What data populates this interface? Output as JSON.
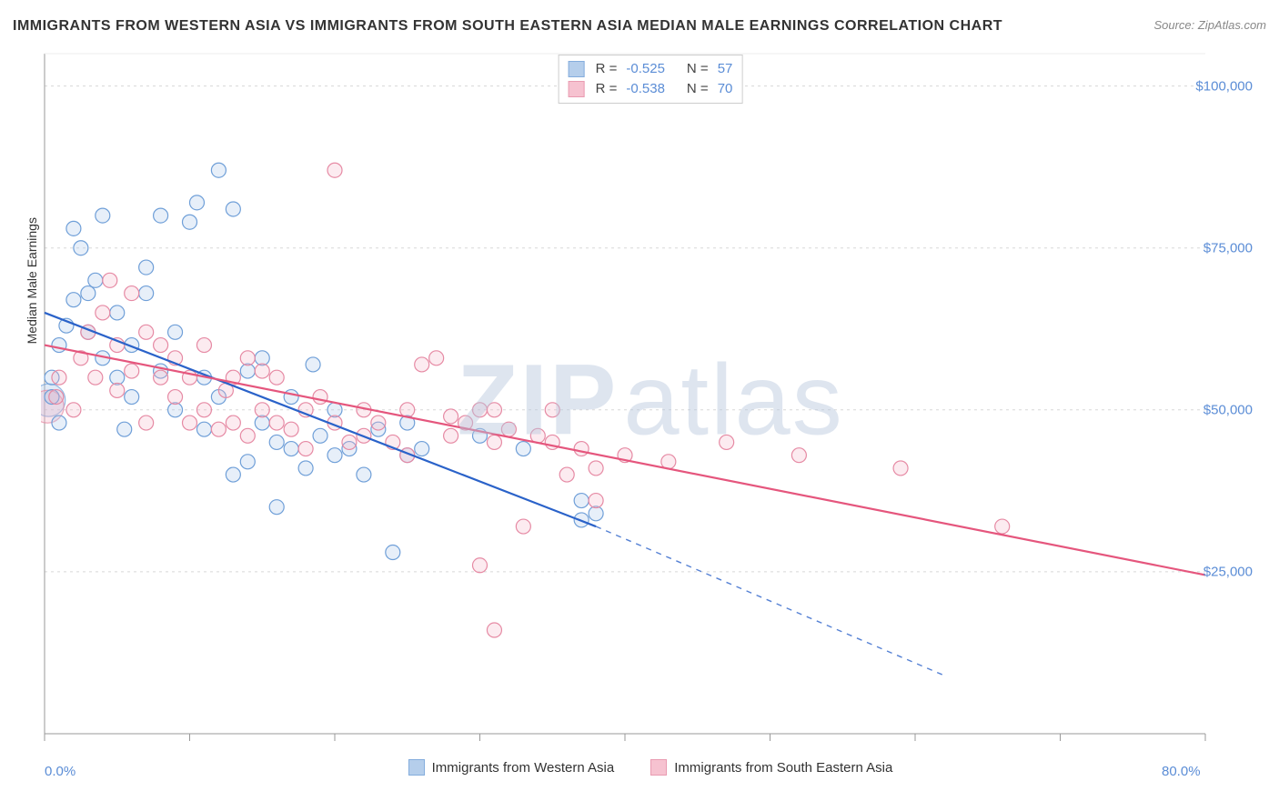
{
  "header": {
    "title": "IMMIGRANTS FROM WESTERN ASIA VS IMMIGRANTS FROM SOUTH EASTERN ASIA MEDIAN MALE EARNINGS CORRELATION CHART",
    "source": "Source: ZipAtlas.com"
  },
  "watermark": {
    "part1": "ZIP",
    "part2": "atlas"
  },
  "chart": {
    "type": "scatter-with-regression",
    "xlim": [
      0,
      80
    ],
    "ylim": [
      0,
      105000
    ],
    "x_tick_min_label": "0.0%",
    "x_tick_max_label": "80.0%",
    "x_ticks": [
      0,
      10,
      20,
      30,
      40,
      50,
      60,
      70,
      80
    ],
    "y_ticks": [
      25000,
      50000,
      75000,
      100000
    ],
    "y_tick_labels": [
      "$25,000",
      "$50,000",
      "$75,000",
      "$100,000"
    ],
    "y_axis_label": "Median Male Earnings",
    "grid_color": "#d8d8d8",
    "axis_color": "#999999",
    "tick_label_color": "#5b8dd6",
    "background_color": "#ffffff",
    "marker_radius": 8,
    "marker_stroke_width": 1.2,
    "marker_fill_opacity": 0.28,
    "line_width": 2.2,
    "big_marker_radius": 18,
    "series": [
      {
        "name": "Immigrants from Western Asia",
        "color_stroke": "#6f9fd8",
        "color_fill": "#a9c6e8",
        "line_color": "#2a62c9",
        "r_label": "R =",
        "r_value": "-0.525",
        "n_label": "N =",
        "n_value": "57",
        "regression": {
          "x1": 0,
          "y1": 65000,
          "x2": 38,
          "y2": 32000,
          "dash_extend_x": 62,
          "dash_extend_y": 9000
        },
        "points": [
          [
            0.5,
            52000
          ],
          [
            0.5,
            55000
          ],
          [
            1,
            48000
          ],
          [
            1,
            60000
          ],
          [
            1.5,
            63000
          ],
          [
            2,
            67000
          ],
          [
            2,
            78000
          ],
          [
            2.5,
            75000
          ],
          [
            3,
            68000
          ],
          [
            3,
            62000
          ],
          [
            3.5,
            70000
          ],
          [
            4,
            80000
          ],
          [
            4,
            58000
          ],
          [
            5,
            65000
          ],
          [
            5,
            55000
          ],
          [
            5.5,
            47000
          ],
          [
            6,
            52000
          ],
          [
            6,
            60000
          ],
          [
            7,
            72000
          ],
          [
            7,
            68000
          ],
          [
            8,
            80000
          ],
          [
            8,
            56000
          ],
          [
            9,
            62000
          ],
          [
            9,
            50000
          ],
          [
            10,
            79000
          ],
          [
            10.5,
            82000
          ],
          [
            11,
            55000
          ],
          [
            11,
            47000
          ],
          [
            12,
            87000
          ],
          [
            12,
            52000
          ],
          [
            13,
            81000
          ],
          [
            13,
            40000
          ],
          [
            14,
            56000
          ],
          [
            14,
            42000
          ],
          [
            15,
            58000
          ],
          [
            15,
            48000
          ],
          [
            16,
            35000
          ],
          [
            16,
            45000
          ],
          [
            17,
            52000
          ],
          [
            17,
            44000
          ],
          [
            18,
            41000
          ],
          [
            18.5,
            57000
          ],
          [
            19,
            46000
          ],
          [
            20,
            43000
          ],
          [
            20,
            50000
          ],
          [
            21,
            44000
          ],
          [
            22,
            40000
          ],
          [
            23,
            47000
          ],
          [
            24,
            28000
          ],
          [
            25,
            43000
          ],
          [
            25,
            48000
          ],
          [
            26,
            44000
          ],
          [
            30,
            46000
          ],
          [
            33,
            44000
          ],
          [
            37,
            33000
          ],
          [
            37,
            36000
          ],
          [
            38,
            34000
          ]
        ],
        "big_points": [
          [
            0.3,
            51500
          ]
        ]
      },
      {
        "name": "Immigrants from South Eastern Asia",
        "color_stroke": "#e68aa4",
        "color_fill": "#f5b8c8",
        "line_color": "#e5567d",
        "r_label": "R =",
        "r_value": "-0.538",
        "n_label": "N =",
        "n_value": "70",
        "regression": {
          "x1": 0,
          "y1": 60000,
          "x2": 80,
          "y2": 24500
        },
        "points": [
          [
            0.8,
            52000
          ],
          [
            1,
            55000
          ],
          [
            2,
            50000
          ],
          [
            2.5,
            58000
          ],
          [
            3,
            62000
          ],
          [
            3.5,
            55000
          ],
          [
            4,
            65000
          ],
          [
            4.5,
            70000
          ],
          [
            5,
            60000
          ],
          [
            5,
            53000
          ],
          [
            6,
            68000
          ],
          [
            6,
            56000
          ],
          [
            7,
            62000
          ],
          [
            7,
            48000
          ],
          [
            8,
            55000
          ],
          [
            8,
            60000
          ],
          [
            9,
            52000
          ],
          [
            9,
            58000
          ],
          [
            10,
            48000
          ],
          [
            10,
            55000
          ],
          [
            11,
            50000
          ],
          [
            11,
            60000
          ],
          [
            12,
            47000
          ],
          [
            12.5,
            53000
          ],
          [
            13,
            55000
          ],
          [
            13,
            48000
          ],
          [
            14,
            58000
          ],
          [
            14,
            46000
          ],
          [
            15,
            50000
          ],
          [
            15,
            56000
          ],
          [
            16,
            48000
          ],
          [
            16,
            55000
          ],
          [
            17,
            47000
          ],
          [
            18,
            50000
          ],
          [
            18,
            44000
          ],
          [
            19,
            52000
          ],
          [
            20,
            87000
          ],
          [
            20,
            48000
          ],
          [
            21,
            45000
          ],
          [
            22,
            50000
          ],
          [
            22,
            46000
          ],
          [
            23,
            48000
          ],
          [
            24,
            45000
          ],
          [
            25,
            50000
          ],
          [
            25,
            43000
          ],
          [
            26,
            57000
          ],
          [
            27,
            58000
          ],
          [
            28,
            46000
          ],
          [
            28,
            49000
          ],
          [
            29,
            48000
          ],
          [
            30,
            50000
          ],
          [
            30,
            26000
          ],
          [
            31,
            45000
          ],
          [
            31,
            50000
          ],
          [
            32,
            47000
          ],
          [
            33,
            32000
          ],
          [
            34,
            46000
          ],
          [
            35,
            45000
          ],
          [
            35,
            50000
          ],
          [
            36,
            40000
          ],
          [
            37,
            44000
          ],
          [
            38,
            41000
          ],
          [
            38,
            36000
          ],
          [
            40,
            43000
          ],
          [
            43,
            42000
          ],
          [
            47,
            45000
          ],
          [
            52,
            43000
          ],
          [
            59,
            41000
          ],
          [
            66,
            32000
          ],
          [
            31,
            16000
          ]
        ],
        "big_points": [
          [
            0.2,
            50500
          ]
        ]
      }
    ]
  },
  "bottom_legend": {
    "item1": "Immigrants from Western Asia",
    "item2": "Immigrants from South Eastern Asia"
  }
}
